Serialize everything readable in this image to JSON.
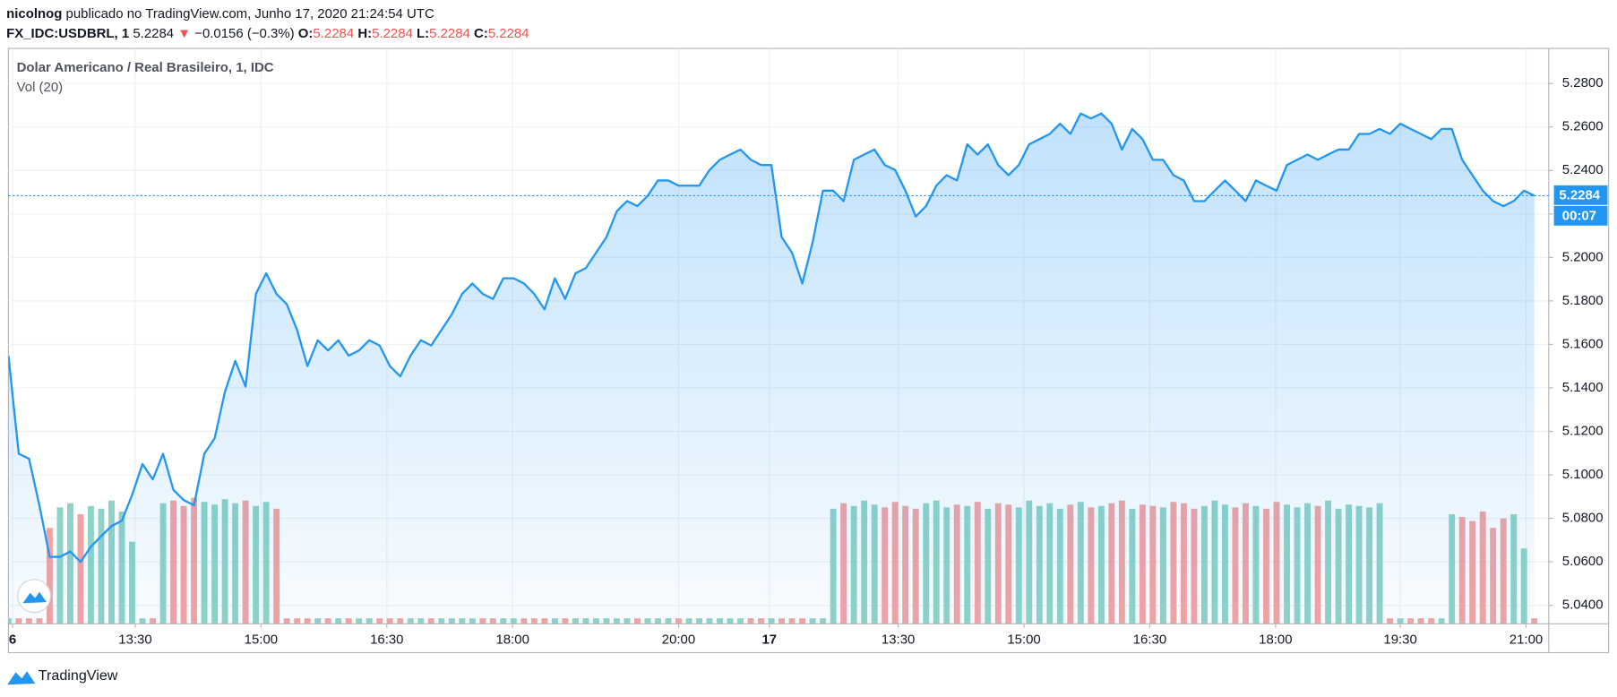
{
  "header": {
    "user": "nicolnog",
    "published": "publicado no TradingView.com, Junho 17, 2020 21:24:54 UTC",
    "symbol": "FX_IDC:USDBRL, 1",
    "last": "5.2284",
    "arrow": "▼",
    "change": "−0.0156 (−0.3%)",
    "ohlc": [
      {
        "label": "O:",
        "value": "5.2284"
      },
      {
        "label": "H:",
        "value": "5.2284"
      },
      {
        "label": "L:",
        "value": "5.2284"
      },
      {
        "label": "C:",
        "value": "5.2284"
      }
    ]
  },
  "footer": {
    "brand": "TradingView"
  },
  "chart_data": {
    "type": "area",
    "title": "Dolar Americano / Real Brasileiro, 1, IDC",
    "color": "#2196f3",
    "grid": true,
    "values": [
      5.1548,
      5.1097,
      5.1074,
      5.086,
      5.0623,
      5.0623,
      5.0647,
      5.0599,
      5.067,
      5.0718,
      5.0765,
      5.0789,
      5.0908,
      5.105,
      5.0979,
      5.1097,
      5.0931,
      5.0884,
      5.086,
      5.1097,
      5.1168,
      5.1382,
      5.1524,
      5.1406,
      5.1832,
      5.1927,
      5.1832,
      5.1785,
      5.1666,
      5.15,
      5.1619,
      5.1572,
      5.1619,
      5.1548,
      5.1572,
      5.1619,
      5.1595,
      5.15,
      5.1453,
      5.1548,
      5.1619,
      5.1595,
      5.1666,
      5.1738,
      5.1832,
      5.188,
      5.1832,
      5.1809,
      5.1904,
      5.1904,
      5.188,
      5.1832,
      5.1761,
      5.1904,
      5.1809,
      5.1927,
      5.1951,
      5.2022,
      5.2093,
      5.2212,
      5.2259,
      5.2236,
      5.2283,
      5.2354,
      5.2354,
      5.233,
      5.233,
      5.233,
      5.2402,
      5.2449,
      5.2473,
      5.2496,
      5.2449,
      5.2425,
      5.2425,
      5.2093,
      5.2022,
      5.188,
      5.207,
      5.2307,
      5.2307,
      5.2259,
      5.2449,
      5.2473,
      5.2496,
      5.2425,
      5.2402,
      5.2307,
      5.2188,
      5.2236,
      5.233,
      5.2378,
      5.2354,
      5.252,
      5.2473,
      5.252,
      5.2425,
      5.2378,
      5.2425,
      5.252,
      5.2544,
      5.2568,
      5.2615,
      5.2568,
      5.2662,
      5.2639,
      5.2662,
      5.2615,
      5.2496,
      5.2591,
      5.2544,
      5.2449,
      5.2449,
      5.2378,
      5.2354,
      5.2259,
      5.2259,
      5.2307,
      5.2354,
      5.2307,
      5.2259,
      5.2354,
      5.233,
      5.2307,
      5.2425,
      5.2449,
      5.2473,
      5.2449,
      5.2473,
      5.2496,
      5.2496,
      5.2568,
      5.2568,
      5.2591,
      5.2568,
      5.2615,
      5.2591,
      5.2568,
      5.2544,
      5.2591,
      5.2591,
      5.2449,
      5.2378,
      5.2307,
      5.2259,
      5.2236,
      5.2259,
      5.2307,
      5.2284
    ],
    "xlim": [
      0,
      149.4
    ],
    "xticks": [
      {
        "value": 0.4,
        "label": "6"
      },
      {
        "value": 12.3,
        "label": "13:30"
      },
      {
        "value": 24.5,
        "label": "15:00"
      },
      {
        "value": 36.7,
        "label": "16:30"
      },
      {
        "value": 48.9,
        "label": "18:00"
      },
      {
        "value": 65,
        "label": "20:00"
      },
      {
        "value": 73.8,
        "label": "17"
      },
      {
        "value": 86.3,
        "label": "13:30"
      },
      {
        "value": 98.5,
        "label": "15:00"
      },
      {
        "value": 110.7,
        "label": "16:30"
      },
      {
        "value": 122.9,
        "label": "18:00"
      },
      {
        "value": 135,
        "label": "19:30"
      },
      {
        "value": 147.2,
        "label": "21:00"
      }
    ],
    "ylim": [
      5.0315,
      5.2961
    ],
    "yticks": [
      {
        "value": 5.04,
        "label": "5.0400"
      },
      {
        "value": 5.06,
        "label": "5.0600"
      },
      {
        "value": 5.08,
        "label": "5.0800"
      },
      {
        "value": 5.1,
        "label": "5.1000"
      },
      {
        "value": 5.12,
        "label": "5.1200"
      },
      {
        "value": 5.14,
        "label": "5.1400"
      },
      {
        "value": 5.16,
        "label": "5.1600"
      },
      {
        "value": 5.18,
        "label": "5.1800"
      },
      {
        "value": 5.2,
        "label": "5.2000"
      },
      {
        "value": 5.22,
        "label": "5.2200"
      },
      {
        "value": 5.24,
        "label": "5.2400"
      },
      {
        "value": 5.26,
        "label": "5.2600"
      },
      {
        "value": 5.28,
        "label": "5.2800"
      }
    ],
    "last_label": "5.2284",
    "countdown": "00:07",
    "volume": {
      "name": "Vol (20)",
      "up_color": "#8fd3c8",
      "down_color": "#f4a3a3",
      "y2lim": [
        0,
        420
      ],
      "values": [
        4,
        4,
        4,
        4,
        70,
        85,
        88,
        80,
        86,
        84,
        90,
        82,
        60,
        4,
        4,
        88,
        90,
        86,
        92,
        89,
        87,
        91,
        88,
        90,
        86,
        89,
        84,
        4,
        4,
        4,
        4,
        4,
        4,
        4,
        4,
        4,
        4,
        4,
        4,
        4,
        4,
        4,
        4,
        4,
        4,
        4,
        4,
        4,
        4,
        4,
        4,
        4,
        4,
        4,
        4,
        4,
        4,
        4,
        4,
        4,
        4,
        4,
        4,
        4,
        4,
        4,
        4,
        4,
        4,
        4,
        4,
        4,
        4,
        4,
        4,
        4,
        4,
        4,
        4,
        4,
        84,
        88,
        86,
        90,
        87,
        85,
        89,
        86,
        84,
        88,
        90,
        85,
        87,
        86,
        89,
        84,
        88,
        87,
        85,
        90,
        86,
        88,
        84,
        87,
        89,
        85,
        86,
        88,
        90,
        84,
        87,
        86,
        85,
        89,
        88,
        84,
        86,
        90,
        87,
        85,
        88,
        86,
        84,
        89,
        87,
        85,
        88,
        86,
        90,
        84,
        87,
        86,
        85,
        88,
        4,
        4,
        4,
        4,
        4,
        4,
        80,
        78,
        75,
        82,
        70,
        77,
        80,
        55,
        4
      ]
    }
  }
}
